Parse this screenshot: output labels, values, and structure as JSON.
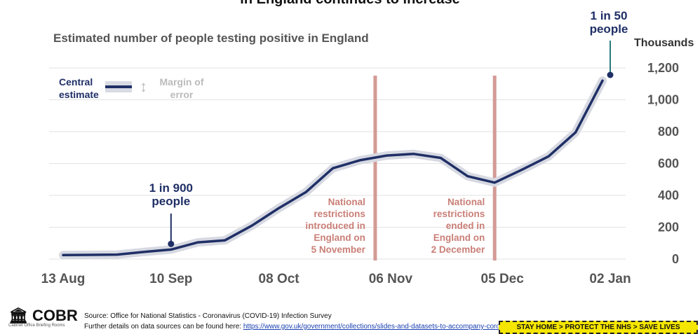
{
  "top_title": "in England continues to increase",
  "subtitle": "Estimated number of people testing positive in England",
  "units": "Thousands",
  "legend": {
    "central": "Central estimate",
    "margin": "Margin of error",
    "arrow_icon": "up-down-arrow-icon"
  },
  "callouts": {
    "start": "1 in 900 people",
    "end": "1 in 50 people"
  },
  "events": [
    {
      "label": [
        "National",
        "restrictions",
        "introduced in",
        "England on",
        "5 November"
      ],
      "x": 81
    },
    {
      "label": [
        "National",
        "restrictions",
        "ended in",
        "England on",
        "2 December"
      ],
      "x": 112
    }
  ],
  "colors": {
    "line": "#1f2f66",
    "band": "#d7d9e2",
    "event_line": "#d39b95",
    "event_text": "#c97f77",
    "grid": "#e2e2e2",
    "axis_text": "#555555"
  },
  "chart_data": {
    "type": "line",
    "title": "Estimated number of people testing positive in England",
    "ylabel": "Thousands",
    "ylim": [
      0,
      1200
    ],
    "y_ticks": [
      0,
      200,
      400,
      600,
      800,
      1000,
      1200
    ],
    "x_tick_labels": [
      "13 Aug",
      "10 Sep",
      "08 Oct",
      "06 Nov",
      "05 Dec",
      "02 Jan"
    ],
    "x_tick_days": [
      0,
      28,
      56,
      85,
      114,
      142
    ],
    "x_axis": "days from 13 Aug",
    "series": [
      {
        "name": "Central estimate",
        "points": [
          [
            0,
            25
          ],
          [
            14,
            28
          ],
          [
            21,
            45
          ],
          [
            28,
            60
          ],
          [
            35,
            105
          ],
          [
            42,
            118
          ],
          [
            49,
            210
          ],
          [
            56,
            320
          ],
          [
            63,
            420
          ],
          [
            70,
            570
          ],
          [
            77,
            620
          ],
          [
            84,
            650
          ],
          [
            91,
            660
          ],
          [
            98,
            635
          ],
          [
            105,
            520
          ],
          [
            112,
            480
          ],
          [
            119,
            560
          ],
          [
            126,
            645
          ],
          [
            133,
            795
          ],
          [
            140,
            1120
          ]
        ]
      }
    ],
    "annotations": [
      {
        "text": "1 in 900 people",
        "x": 28,
        "y": 60
      },
      {
        "text": "1 in 50 people",
        "x": 140,
        "y": 1150
      }
    ]
  },
  "footer": {
    "logo": "COBR",
    "logo_sub": "Cabinet Office Briefing Rooms",
    "source": "Source: Office for National Statistics - Coronavirus (COVID-19) Infection Survey",
    "further_prefix": "Further details on data sources can be found here: ",
    "further_link": "https://www.gov.uk/government/collections/slides-and-datasets-to-accompany-coronavirus-press-conferences",
    "stay_home": "STAY HOME > PROTECT THE NHS > SAVE LIVES"
  }
}
